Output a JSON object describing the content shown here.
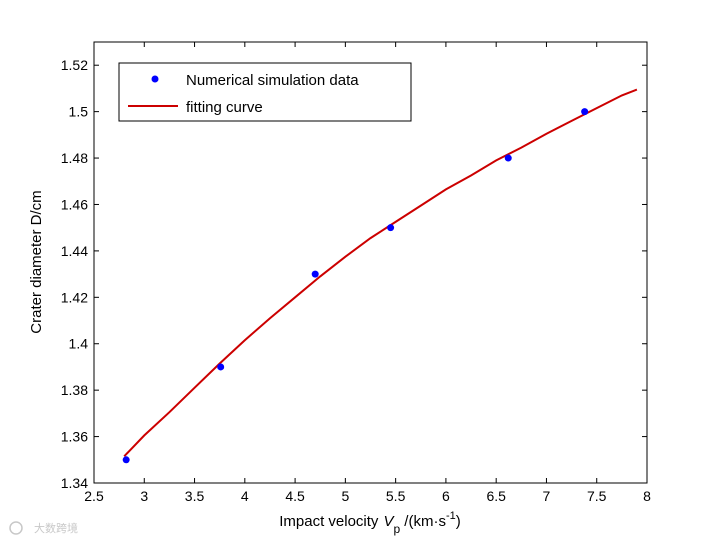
{
  "chart_data": {
    "type": "line",
    "xlabel": "Impact velocity",
    "xlabel_var": "V",
    "xlabel_sub": "p",
    "xlabel_unit": " /(km·s",
    "xlabel_sup": "-1",
    "xlabel_close": ")",
    "ylabel": "Crater diameter D/cm",
    "xlim": [
      2.5,
      8
    ],
    "ylim": [
      1.34,
      1.53
    ],
    "xticks": [
      "2.5",
      "3",
      "3.5",
      "4",
      "4.5",
      "5",
      "5.5",
      "6",
      "6.5",
      "7",
      "7.5",
      "8"
    ],
    "yticks": [
      "1.34",
      "1.36",
      "1.38",
      "1.4",
      "1.42",
      "1.44",
      "1.46",
      "1.48",
      "1.5",
      "1.52"
    ],
    "legend_position": "top-left",
    "grid": false,
    "series": [
      {
        "name": "Numerical simulation data",
        "kind": "scatter",
        "color": "#0000ff",
        "x": [
          2.82,
          3.76,
          4.7,
          5.45,
          6.62,
          7.38
        ],
        "y": [
          1.35,
          1.39,
          1.43,
          1.45,
          1.48,
          1.5
        ]
      },
      {
        "name": "fitting curve",
        "kind": "line",
        "color": "#cc0000",
        "x": [
          2.8,
          3.0,
          3.25,
          3.5,
          3.75,
          4.0,
          4.25,
          4.5,
          4.75,
          5.0,
          5.25,
          5.5,
          5.75,
          6.0,
          6.25,
          6.5,
          6.75,
          7.0,
          7.25,
          7.5,
          7.75,
          7.9
        ],
        "y": [
          1.3515,
          1.3605,
          1.3705,
          1.381,
          1.3915,
          1.4015,
          1.411,
          1.42,
          1.429,
          1.4375,
          1.4455,
          1.4525,
          1.4595,
          1.4665,
          1.4725,
          1.479,
          1.4845,
          1.4905,
          1.496,
          1.5015,
          1.507,
          1.5095
        ]
      }
    ]
  },
  "watermark": "大数跨境"
}
